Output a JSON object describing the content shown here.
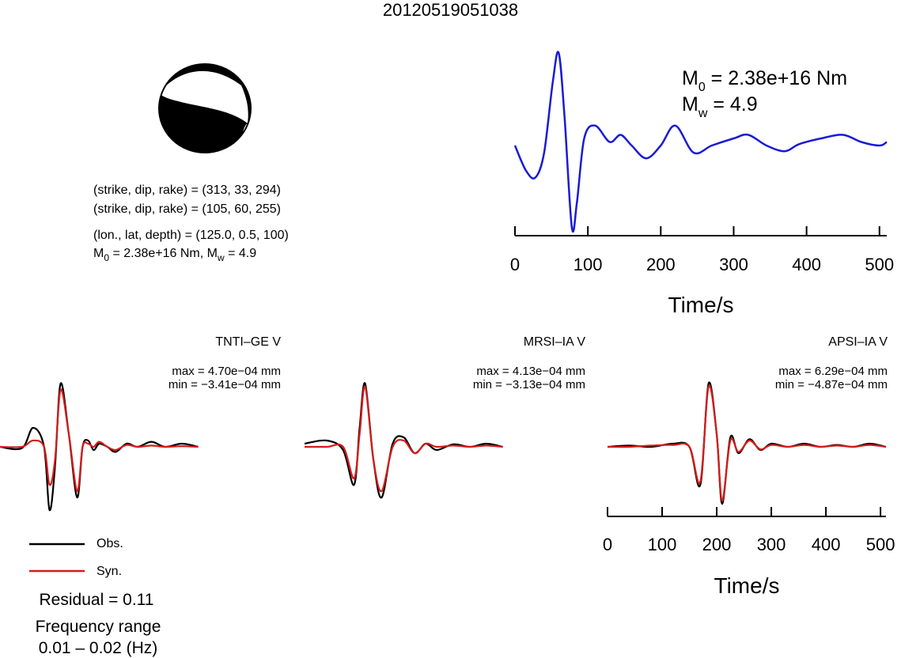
{
  "title": "20120519051038",
  "mechanism": {
    "np1": "(strike, dip, rake) = (313, 33, 294)",
    "np2": "(strike, dip, rake) = (105, 60, 255)",
    "location": "(lon., lat, depth) = (125.0, 0.5, 100)",
    "m0_prefix": "M",
    "m0_sub": "0",
    "m0_value": " = 2.38e+16 Nm, M",
    "mw_sub": "w",
    "mw_value": " = 4.9"
  },
  "stf": {
    "m0_prefix": "M",
    "m0_sub": "0",
    "m0_value": " = 2.38e+16 Nm",
    "mw_prefix": "M",
    "mw_sub": "w",
    "mw_value": " = 4.9",
    "color": "#1a1ad6",
    "xlabel": "Time/s"
  },
  "stations": [
    {
      "name": "TNTI–GE V",
      "max": "max = 4.70e−04 mm",
      "min": "min = −3.41e−04 mm"
    },
    {
      "name": "MRSI–IA V",
      "max": "max = 4.13e−04 mm",
      "min": "min = −3.13e−04 mm"
    },
    {
      "name": "APSI–IA V",
      "max": "max = 6.29e−04 mm",
      "min": "min = −4.87e−04 mm"
    }
  ],
  "legend": {
    "obs_label": "Obs.",
    "syn_label": "Syn.",
    "obs_color": "#000000",
    "syn_color": "#d61a1a"
  },
  "residual": "Residual = 0.11",
  "freq_label": "Frequency range",
  "freq_value": "0.01 – 0.02 (Hz)",
  "chart_data": [
    {
      "type": "line",
      "name": "source-time-function",
      "xlabel": "Time/s",
      "ylabel": "",
      "xlim": [
        0,
        510
      ],
      "xticks": [
        0,
        100,
        200,
        300,
        400,
        500
      ],
      "x": [
        0,
        15,
        28,
        40,
        52,
        60,
        68,
        78,
        85,
        95,
        110,
        130,
        145,
        160,
        180,
        200,
        220,
        245,
        270,
        300,
        320,
        345,
        370,
        390,
        420,
        450,
        475,
        500,
        510
      ],
      "series": [
        {
          "values": [
            0.0,
            -0.35,
            -0.45,
            -0.1,
            0.9,
            1.3,
            0.4,
            -1.15,
            -0.8,
            0.1,
            0.28,
            0.05,
            0.15,
            0.0,
            -0.18,
            0.0,
            0.28,
            -0.1,
            0.0,
            0.1,
            0.15,
            0.0,
            -0.08,
            0.02,
            0.1,
            0.15,
            0.05,
            0.0,
            0.05
          ]
        }
      ]
    },
    {
      "type": "line",
      "name": "TNTI-GE V",
      "xlim": [
        0,
        510
      ],
      "x": [
        0,
        40,
        60,
        80,
        90,
        100,
        110,
        125,
        140,
        150,
        160,
        170,
        180,
        195,
        210,
        230,
        250,
        275,
        300,
        330,
        360
      ],
      "series": [
        {
          "name": "Obs.",
          "values": [
            0,
            -0.02,
            0.3,
            0.0,
            -1.0,
            -0.3,
            1.0,
            0.2,
            -0.8,
            0.0,
            0.1,
            -0.05,
            0.05,
            0.0,
            -0.08,
            0.05,
            0.0,
            0.08,
            0.0,
            0.05,
            0.0
          ]
        },
        {
          "name": "Syn.",
          "values": [
            0,
            0.0,
            0.1,
            0.0,
            -0.6,
            -0.2,
            0.9,
            0.2,
            -0.7,
            0.0,
            0.05,
            0.0,
            0.08,
            0.0,
            -0.05,
            0.03,
            0.0,
            0.02,
            0.0,
            0.01,
            0.0
          ]
        }
      ]
    },
    {
      "type": "line",
      "name": "MRSI-IA V",
      "xlim": [
        0,
        510
      ],
      "x": [
        0,
        40,
        70,
        90,
        100,
        110,
        125,
        140,
        160,
        180,
        200,
        220,
        240,
        270,
        300,
        330,
        360
      ],
      "series": [
        {
          "name": "Obs.",
          "values": [
            0.05,
            0.1,
            -0.05,
            -0.6,
            0.3,
            1.0,
            -0.2,
            -0.8,
            0.05,
            0.15,
            -0.1,
            0.05,
            -0.05,
            0.04,
            0.0,
            0.05,
            0.0
          ]
        },
        {
          "name": "Syn.",
          "values": [
            0.0,
            0.0,
            0.0,
            -0.5,
            0.2,
            0.95,
            -0.2,
            -0.7,
            0.0,
            0.1,
            -0.1,
            0.05,
            0.0,
            0.02,
            0.0,
            0.02,
            0.0
          ]
        }
      ]
    },
    {
      "type": "line",
      "name": "APSI-IA V",
      "xlabel": "Time/s",
      "xlim": [
        0,
        510
      ],
      "xticks": [
        0,
        100,
        200,
        300,
        400,
        500
      ],
      "x": [
        0,
        40,
        80,
        120,
        150,
        170,
        185,
        200,
        210,
        225,
        240,
        260,
        280,
        300,
        330,
        360,
        390,
        420,
        450,
        480,
        510
      ],
      "series": [
        {
          "name": "Obs.",
          "values": [
            0.0,
            0.02,
            0.0,
            0.05,
            0.0,
            -0.6,
            1.0,
            0.2,
            -0.9,
            0.15,
            -0.1,
            0.12,
            -0.05,
            0.05,
            0.0,
            0.05,
            0.0,
            0.03,
            0.0,
            0.05,
            0.0
          ]
        },
        {
          "name": "Syn.",
          "values": [
            0.0,
            0.0,
            0.02,
            0.03,
            0.0,
            -0.55,
            0.95,
            0.2,
            -0.85,
            0.1,
            -0.08,
            0.1,
            -0.04,
            0.03,
            0.0,
            0.03,
            0.0,
            0.02,
            0.0,
            0.03,
            0.0
          ]
        }
      ]
    }
  ]
}
